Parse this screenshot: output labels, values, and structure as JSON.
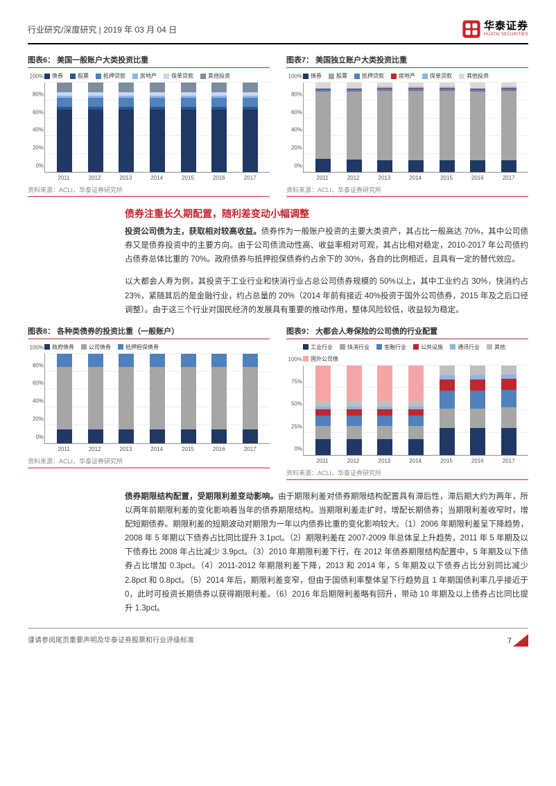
{
  "header": {
    "breadcrumb": "行业研究/深度研究  | 2019 年 03 月 04 日",
    "logo_cn": "华泰证券",
    "logo_en": "HUATAI SECURITIES"
  },
  "chart6": {
    "title": "图表6：  美国一般账户大类投资比重",
    "legend": [
      {
        "label": "债券",
        "color": "#1f3864"
      },
      {
        "label": "股票",
        "color": "#2f5597"
      },
      {
        "label": "抵押贷款",
        "color": "#4f81bd"
      },
      {
        "label": "房地产",
        "color": "#8eb4e3"
      },
      {
        "label": "保单贷款",
        "color": "#c6d9f1"
      },
      {
        "label": "其他投资",
        "color": "#7c8da0"
      }
    ],
    "categories": [
      "2011",
      "2012",
      "2013",
      "2014",
      "2015",
      "2016",
      "2017"
    ],
    "yticks": [
      "0%",
      "20%",
      "40%",
      "60%",
      "80%",
      "100%"
    ],
    "series": [
      {
        "color": "#1f3864",
        "values": [
          70,
          70,
          70,
          70,
          70,
          70,
          70
        ]
      },
      {
        "color": "#2f5597",
        "values": [
          3,
          3,
          3,
          3,
          3,
          3,
          3
        ]
      },
      {
        "color": "#4f81bd",
        "values": [
          10,
          10,
          10,
          10,
          10,
          10,
          10
        ]
      },
      {
        "color": "#8eb4e3",
        "values": [
          2,
          2,
          2,
          2,
          2,
          2,
          2
        ]
      },
      {
        "color": "#c6d9f1",
        "values": [
          4,
          4,
          4,
          4,
          4,
          4,
          4
        ]
      },
      {
        "color": "#7c8da0",
        "values": [
          11,
          11,
          11,
          11,
          11,
          11,
          11
        ]
      }
    ],
    "src": "资料来源：ACLI，华泰证券研究所"
  },
  "chart7": {
    "title": "图表7：  美国独立账户大类投资比重",
    "legend": [
      {
        "label": "债券",
        "color": "#1f3864"
      },
      {
        "label": "股票",
        "color": "#a6a6a6"
      },
      {
        "label": "抵押贷款",
        "color": "#4f81bd"
      },
      {
        "label": "房地产",
        "color": "#c0272d"
      },
      {
        "label": "保单贷款",
        "color": "#8eb4e3"
      },
      {
        "label": "其他投资",
        "color": "#d9d9d9"
      }
    ],
    "categories": [
      "2011",
      "2012",
      "2013",
      "2014",
      "2015",
      "2016",
      "2017"
    ],
    "yticks": [
      "0%",
      "20%",
      "40%",
      "60%",
      "80%",
      "100%"
    ],
    "series": [
      {
        "color": "#1f3864",
        "values": [
          15,
          14,
          13,
          13,
          13,
          13,
          13
        ]
      },
      {
        "color": "#a6a6a6",
        "values": [
          75,
          76,
          78,
          78,
          78,
          77,
          78
        ]
      },
      {
        "color": "#4f81bd",
        "values": [
          2,
          2,
          2,
          2,
          2,
          2,
          2
        ]
      },
      {
        "color": "#c0272d",
        "values": [
          1,
          1,
          1,
          1,
          1,
          1,
          1
        ]
      },
      {
        "color": "#8eb4e3",
        "values": [
          1,
          1,
          1,
          1,
          1,
          1,
          1
        ]
      },
      {
        "color": "#d9d9d9",
        "values": [
          6,
          6,
          5,
          5,
          5,
          6,
          5
        ]
      }
    ],
    "src": "资料来源：ACLI，华泰证券研究所"
  },
  "section1_title": "债券注重长久期配置，随利差变动小幅调整",
  "para1": "投资公司债为主，获取相对较高收益。债券作为一般账户投资的主要大类资产，其占比一般高达 70%，其中公司债券又是债券投资中的主要方向。由于公司债流动性高、收益率相对可观，其占比相对稳定，2010-2017 年公司债约占债券总体比重的 70%。政府债券与抵押担保债券约占余下的 30%，各自的比例相近，且具有一定的替代效应。",
  "para2": "以大都会人寿为例，其投资于工业行业和快消行业占总公司债券规模的 50%以上，其中工业约占 30%，快消约占 23%，紧随其后的是金融行业，约占总量的 20%（2014 年前有接近 40%投资于国外公司债券，2015 年及之后口径调整）。由于这三个行业对国民经济的发展具有重要的推动作用，整体风险较低，收益较为稳定。",
  "chart8": {
    "title": "图表8：  各种类债券的投资比重（一般账户）",
    "legend": [
      {
        "label": "政府债券",
        "color": "#1f3864"
      },
      {
        "label": "公司债券",
        "color": "#a6a6a6"
      },
      {
        "label": "抵押担保债券",
        "color": "#4f81bd"
      }
    ],
    "categories": [
      "2011",
      "2012",
      "2013",
      "2014",
      "2015",
      "2016",
      "2017"
    ],
    "yticks": [
      "0%",
      "20%",
      "40%",
      "60%",
      "80%",
      "100%"
    ],
    "series": [
      {
        "color": "#1f3864",
        "values": [
          15,
          15,
          15,
          15,
          15,
          15,
          15
        ]
      },
      {
        "color": "#a6a6a6",
        "values": [
          70,
          70,
          70,
          70,
          70,
          70,
          70
        ]
      },
      {
        "color": "#4f81bd",
        "values": [
          15,
          15,
          15,
          15,
          15,
          15,
          15
        ]
      }
    ],
    "src": "资料来源：ACLI，华泰证券研究所"
  },
  "chart9": {
    "title": "图表9：  大都会人寿保险的公司债的行业配置",
    "legend": [
      {
        "label": "工业行业",
        "color": "#1f3864"
      },
      {
        "label": "快消行业",
        "color": "#a6a6a6"
      },
      {
        "label": "金融行业",
        "color": "#4f81bd"
      },
      {
        "label": "公共设施",
        "color": "#c0272d"
      },
      {
        "label": "通讯行业",
        "color": "#8eb4e3"
      },
      {
        "label": "其他",
        "color": "#bfbfbf"
      },
      {
        "label": "国外公司债",
        "color": "#f4a6a6"
      }
    ],
    "categories": [
      "2011",
      "2012",
      "2013",
      "2014",
      "2015",
      "2016",
      "2017"
    ],
    "yticks": [
      "0%",
      "25%",
      "50%",
      "75%",
      "100%"
    ],
    "series": [
      {
        "color": "#1f3864",
        "values": [
          18,
          18,
          18,
          18,
          30,
          30,
          30
        ]
      },
      {
        "color": "#a6a6a6",
        "values": [
          14,
          14,
          14,
          14,
          22,
          22,
          23
        ]
      },
      {
        "color": "#4f81bd",
        "values": [
          12,
          12,
          12,
          12,
          20,
          20,
          20
        ]
      },
      {
        "color": "#c0272d",
        "values": [
          7,
          7,
          7,
          7,
          12,
          12,
          12
        ]
      },
      {
        "color": "#8eb4e3",
        "values": [
          3,
          3,
          3,
          3,
          5,
          5,
          5
        ]
      },
      {
        "color": "#bfbfbf",
        "values": [
          6,
          6,
          6,
          6,
          11,
          11,
          10
        ]
      },
      {
        "color": "#f4a6a6",
        "values": [
          40,
          40,
          40,
          40,
          0,
          0,
          0
        ]
      }
    ],
    "src": "资料来源：ACLI，华泰证券研究所"
  },
  "para3": "债券期限结构配置，受期限利差变动影响。由于期限利差对债券期限结构配置具有滞后性，滞后期大约为两年，所以两年前期限利差的变化影响着当年的债券期限结构。当期限利差走扩时，增配长期债券；当期限利差收窄时，增配短期债券。期限利差的短期波动对期限为一年以内债券比重的变化影响较大。（1）2006 年期限利差呈下降趋势，2008 年 5 年期以下债券占比同比提升 3.1pct。（2）期限利差在 2007-2009 年总体呈上升趋势，2011 年 5 年期及以下债券比 2008 年占比减少 3.9pct。（3）2010 年期限利差下行，在 2012 年债券期限结构配置中，5 年期及以下债券占比增加 0.3pct。（4）2011-2012 年期限利差下降，2013 和 2014 年，5 年期及以下债券占比分别同比减少 2.8pct 和 0.8pct。（5）2014 年后，期限利差变窄，但由于国债利率整体呈下行趋势且 1 年期国债利率几乎接近于 0，此时可投资长期债券以获得期限利差。（6）2016 年后期限利差略有回升，带动 10 年期及以上债券占比同比提升 1.3pct。",
  "footer": "谨请参阅尾页重要声明及华泰证券股票和行业评级标准",
  "pagenum": "7"
}
